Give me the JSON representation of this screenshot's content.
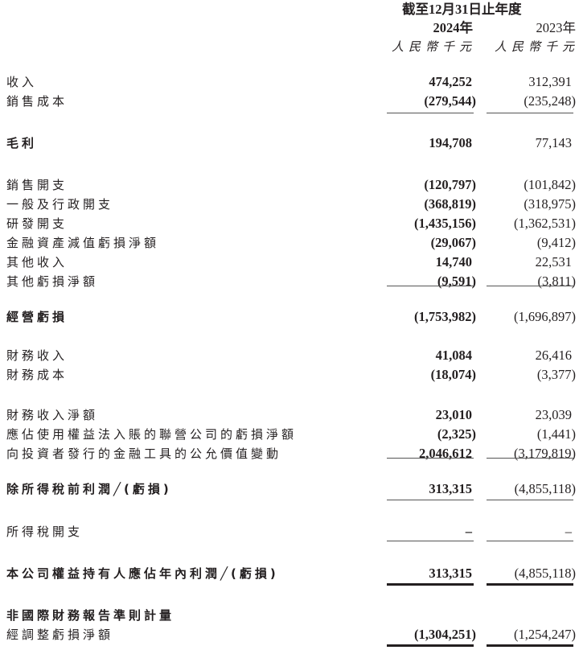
{
  "header": {
    "period": "截至12月31日止年度",
    "year1": "2024年",
    "year2": "2023年",
    "unit1": "人民幣千元",
    "unit2": "人民幣千元"
  },
  "rows": [
    {
      "label": "收入",
      "v2024": "474,252",
      "v2023": "312,391"
    },
    {
      "label": "銷售成本",
      "v2024": "(279,544)",
      "v2023": "(235,248)"
    },
    {
      "label": "毛利",
      "v2024": "194,708",
      "v2023": "77,143"
    },
    {
      "label": "銷售開支",
      "v2024": "(120,797)",
      "v2023": "(101,842)"
    },
    {
      "label": "一般及行政開支",
      "v2024": "(368,819)",
      "v2023": "(318,975)"
    },
    {
      "label": "研發開支",
      "v2024": "(1,435,156)",
      "v2023": "(1,362,531)"
    },
    {
      "label": "金融資產減值虧損淨額",
      "v2024": "(29,067)",
      "v2023": "(9,412)"
    },
    {
      "label": "其他收入",
      "v2024": "14,740",
      "v2023": "22,531"
    },
    {
      "label": "其他虧損淨額",
      "v2024": "(9,591)",
      "v2023": "(3,811)"
    },
    {
      "label": "經營虧損",
      "v2024": "(1,753,982)",
      "v2023": "(1,696,897)"
    },
    {
      "label": "財務收入",
      "v2024": "41,084",
      "v2023": "26,416"
    },
    {
      "label": "財務成本",
      "v2024": "(18,074)",
      "v2023": "(3,377)"
    },
    {
      "label": "財務收入淨額",
      "v2024": "23,010",
      "v2023": "23,039"
    },
    {
      "label": "應佔使用權益法入賬的聯營公司的虧損淨額",
      "v2024": "(2,325)",
      "v2023": "(1,441)"
    },
    {
      "label": "向投資者發行的金融工具的公允價值變動",
      "v2024": "2,046,612",
      "v2023": "(3,179,819)"
    },
    {
      "label": "除所得稅前利潤╱(虧損)",
      "v2024": "313,315",
      "v2023": "(4,855,118)"
    },
    {
      "label": "所得稅開支",
      "v2024": "–",
      "v2023": "–"
    },
    {
      "label": "本公司權益持有人應佔年內利潤╱(虧損)",
      "v2024": "313,315",
      "v2023": "(4,855,118)"
    },
    {
      "label": "非國際財務報告準則計量",
      "v2024": "",
      "v2023": ""
    },
    {
      "label": "經調整虧損淨額",
      "v2024": "(1,304,251)",
      "v2023": "(1,254,247)"
    }
  ]
}
